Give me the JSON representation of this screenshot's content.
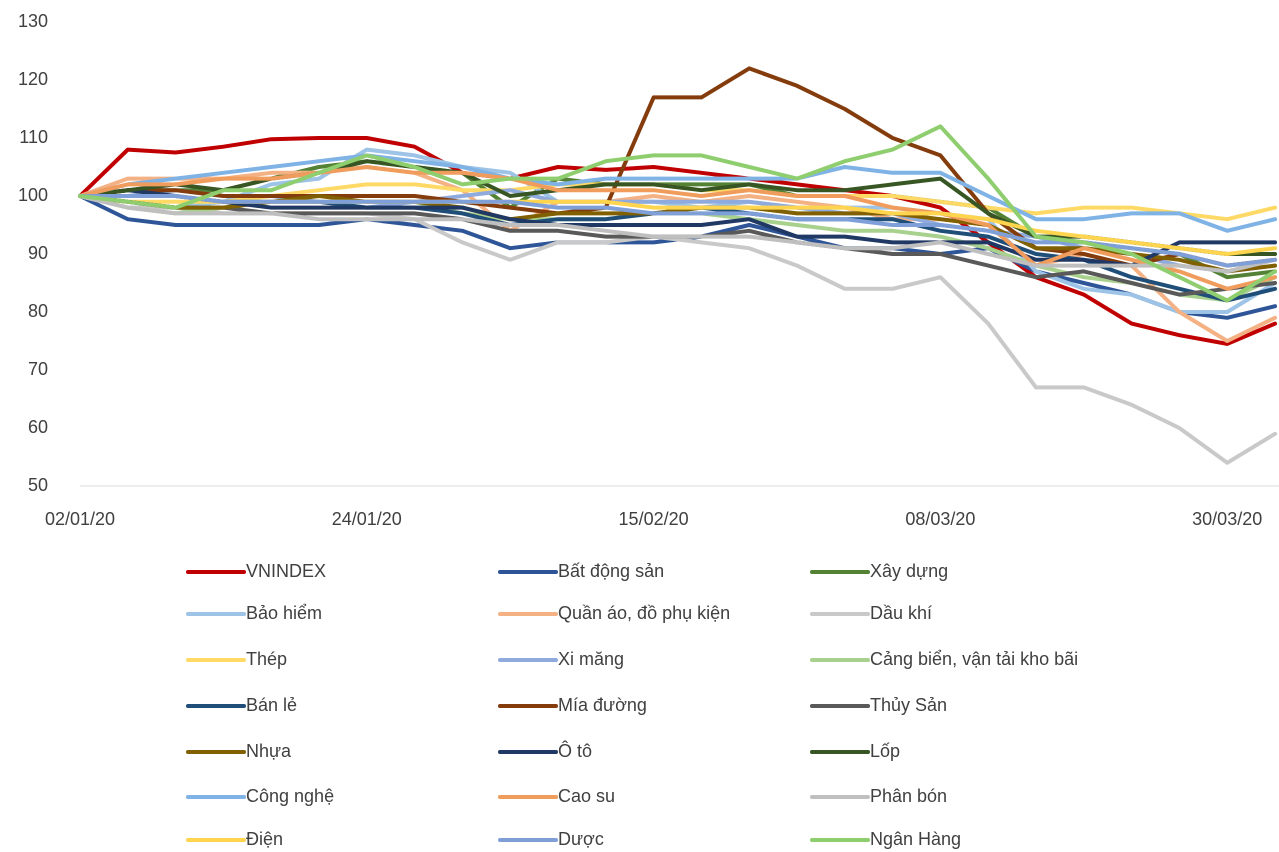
{
  "chart_data": {
    "type": "line",
    "categories": [
      "02/01/20",
      null,
      null,
      null,
      null,
      null,
      "24/01/20",
      null,
      null,
      null,
      null,
      null,
      "15/02/20",
      null,
      null,
      null,
      null,
      null,
      "08/03/20",
      null,
      null,
      null,
      null,
      null,
      "30/03/20",
      null
    ],
    "ylim": [
      50,
      130
    ],
    "yticks": [
      50,
      60,
      70,
      80,
      90,
      100,
      110,
      120,
      130
    ],
    "grid": false,
    "series": [
      {
        "name": "VNINDEX",
        "color": "#c00000",
        "values": [
          100,
          108,
          107.5,
          108.5,
          109.8,
          110,
          110,
          108.5,
          104,
          103,
          105,
          104.5,
          105,
          104,
          103,
          102,
          101,
          100,
          98,
          92,
          86,
          83,
          78,
          76,
          74.5,
          78
        ]
      },
      {
        "name": "Bất động sản",
        "color": "#2e5597",
        "values": [
          100,
          96,
          95,
          95,
          95,
          95,
          96,
          95,
          94,
          91,
          92,
          92,
          92,
          93,
          95,
          93,
          91,
          91,
          90,
          91,
          87,
          85,
          83,
          80,
          79,
          81
        ]
      },
      {
        "name": "Xây dựng",
        "color": "#548235",
        "values": [
          100,
          101,
          101,
          101,
          103,
          105,
          106,
          105,
          104,
          98,
          103,
          102,
          102,
          102,
          102,
          100,
          100,
          100,
          99,
          98,
          93,
          92,
          91,
          90,
          86,
          87
        ]
      },
      {
        "name": "Bảo hiểm",
        "color": "#9dc3e6",
        "values": [
          100,
          98,
          98,
          99,
          102,
          103,
          108,
          107,
          105,
          104,
          99,
          99,
          99,
          98,
          99,
          98,
          98,
          98,
          97,
          96,
          87,
          84,
          83,
          80,
          80,
          85
        ]
      },
      {
        "name": "Quần áo, đồ phụ kiện",
        "color": "#f4b183",
        "values": [
          100,
          103,
          103,
          103,
          104,
          104,
          105,
          104,
          101,
          94,
          99,
          99,
          100,
          99,
          100,
          99,
          98,
          96,
          96,
          95,
          88,
          90,
          88,
          80,
          75,
          79
        ]
      },
      {
        "name": "Dầu khí",
        "color": "#c9c9c9",
        "values": [
          100,
          98,
          98,
          97,
          97,
          97,
          97,
          96,
          92,
          89,
          92,
          92,
          93,
          92,
          91,
          88,
          84,
          84,
          86,
          78,
          67,
          67,
          64,
          60,
          54,
          59
        ]
      },
      {
        "name": "Thép",
        "color": "#ffd966",
        "values": [
          100,
          99,
          99,
          99,
          100,
          101,
          102,
          102,
          101,
          101,
          102,
          102,
          102,
          101,
          101,
          100,
          100,
          100,
          99,
          98,
          97,
          98,
          98,
          97,
          96,
          98
        ]
      },
      {
        "name": "Xi măng",
        "color": "#8faadc",
        "values": [
          100,
          100,
          101,
          100,
          100,
          99,
          98,
          99,
          100,
          101,
          99,
          99,
          99,
          99,
          99,
          98,
          97,
          97,
          95,
          94,
          93,
          91,
          90,
          88,
          87,
          88
        ]
      },
      {
        "name": "Cảng biển, vận tải kho bãi",
        "color": "#a9d18e",
        "values": [
          100,
          98,
          97,
          98,
          99,
          99,
          99,
          99,
          97,
          96,
          96,
          96,
          97,
          97,
          96,
          95,
          94,
          94,
          93,
          91,
          88,
          86,
          85,
          83,
          82,
          86
        ]
      },
      {
        "name": "Bán lẻ",
        "color": "#1f4e79",
        "values": [
          100,
          100,
          100,
          99,
          99,
          99,
          98,
          98,
          97,
          95,
          96,
          96,
          97,
          98,
          97,
          96,
          96,
          96,
          94,
          93,
          90,
          89,
          86,
          84,
          82,
          84
        ]
      },
      {
        "name": "Mía đường",
        "color": "#843c0c",
        "values": [
          100,
          101,
          101,
          100,
          100,
          100,
          100,
          100,
          99,
          98,
          97,
          98,
          117,
          117,
          122,
          119,
          115,
          110,
          107,
          97,
          91,
          90,
          88,
          90,
          88,
          89
        ]
      },
      {
        "name": "Thủy Sản",
        "color": "#595959",
        "values": [
          100,
          99,
          98,
          98,
          97,
          97,
          97,
          97,
          96,
          94,
          94,
          93,
          93,
          93,
          94,
          92,
          91,
          90,
          90,
          88,
          86,
          87,
          85,
          83,
          84,
          85
        ]
      },
      {
        "name": "Nhựa",
        "color": "#806000",
        "values": [
          100,
          99,
          98,
          98,
          99,
          100,
          99,
          99,
          98,
          96,
          97,
          97,
          97,
          98,
          98,
          97,
          97,
          97,
          96,
          95,
          91,
          91,
          90,
          89,
          87,
          88
        ]
      },
      {
        "name": "Ô tô",
        "color": "#203864",
        "values": [
          100,
          101,
          100,
          99,
          98,
          98,
          98,
          98,
          98,
          96,
          95,
          95,
          95,
          95,
          96,
          93,
          93,
          92,
          92,
          92,
          89,
          89,
          88,
          92,
          92,
          92
        ]
      },
      {
        "name": "Lốp",
        "color": "#375623",
        "values": [
          100,
          101,
          102,
          101,
          103,
          104,
          106,
          105,
          104,
          100,
          101,
          102,
          102,
          101,
          102,
          101,
          101,
          102,
          103,
          97,
          93,
          93,
          92,
          91,
          90,
          90
        ]
      },
      {
        "name": "Công nghệ",
        "color": "#7fb2e5",
        "values": [
          100,
          102,
          103,
          104,
          105,
          106,
          107,
          106,
          105,
          103,
          102,
          103,
          103,
          103,
          103,
          103,
          105,
          104,
          104,
          100,
          96,
          96,
          97,
          97,
          94,
          96
        ]
      },
      {
        "name": "Cao su",
        "color": "#f09c5c",
        "values": [
          100,
          102,
          102,
          103,
          103,
          104,
          105,
          104,
          104,
          103,
          101,
          101,
          101,
          100,
          101,
          100,
          100,
          98,
          97,
          95,
          88,
          91,
          89,
          87,
          84,
          86
        ]
      },
      {
        "name": "Phân bón",
        "color": "#bfbfbf",
        "values": [
          100,
          98,
          97,
          97,
          97,
          96,
          96,
          96,
          96,
          95,
          95,
          94,
          93,
          93,
          93,
          92,
          91,
          91,
          92,
          90,
          88,
          88,
          88,
          88,
          87,
          89
        ]
      },
      {
        "name": "Điện",
        "color": "#ffd54f",
        "values": [
          100,
          100,
          100,
          99,
          99,
          99,
          99,
          99,
          99,
          99,
          99,
          99,
          98,
          98,
          98,
          98,
          98,
          97,
          97,
          96,
          94,
          93,
          92,
          91,
          90,
          91
        ]
      },
      {
        "name": "Dược",
        "color": "#7f9fd8",
        "values": [
          100,
          100,
          100,
          99,
          99,
          99,
          99,
          99,
          99,
          99,
          98,
          98,
          97,
          97,
          97,
          96,
          96,
          95,
          95,
          94,
          92,
          92,
          91,
          90,
          88,
          89
        ]
      },
      {
        "name": "Ngân Hàng",
        "color": "#8fce6f",
        "values": [
          100,
          99,
          98,
          101,
          101,
          104,
          107,
          105,
          102,
          103,
          103,
          106,
          107,
          107,
          105,
          103,
          106,
          108,
          112,
          103,
          93,
          92,
          90,
          86,
          82,
          87
        ]
      }
    ]
  }
}
